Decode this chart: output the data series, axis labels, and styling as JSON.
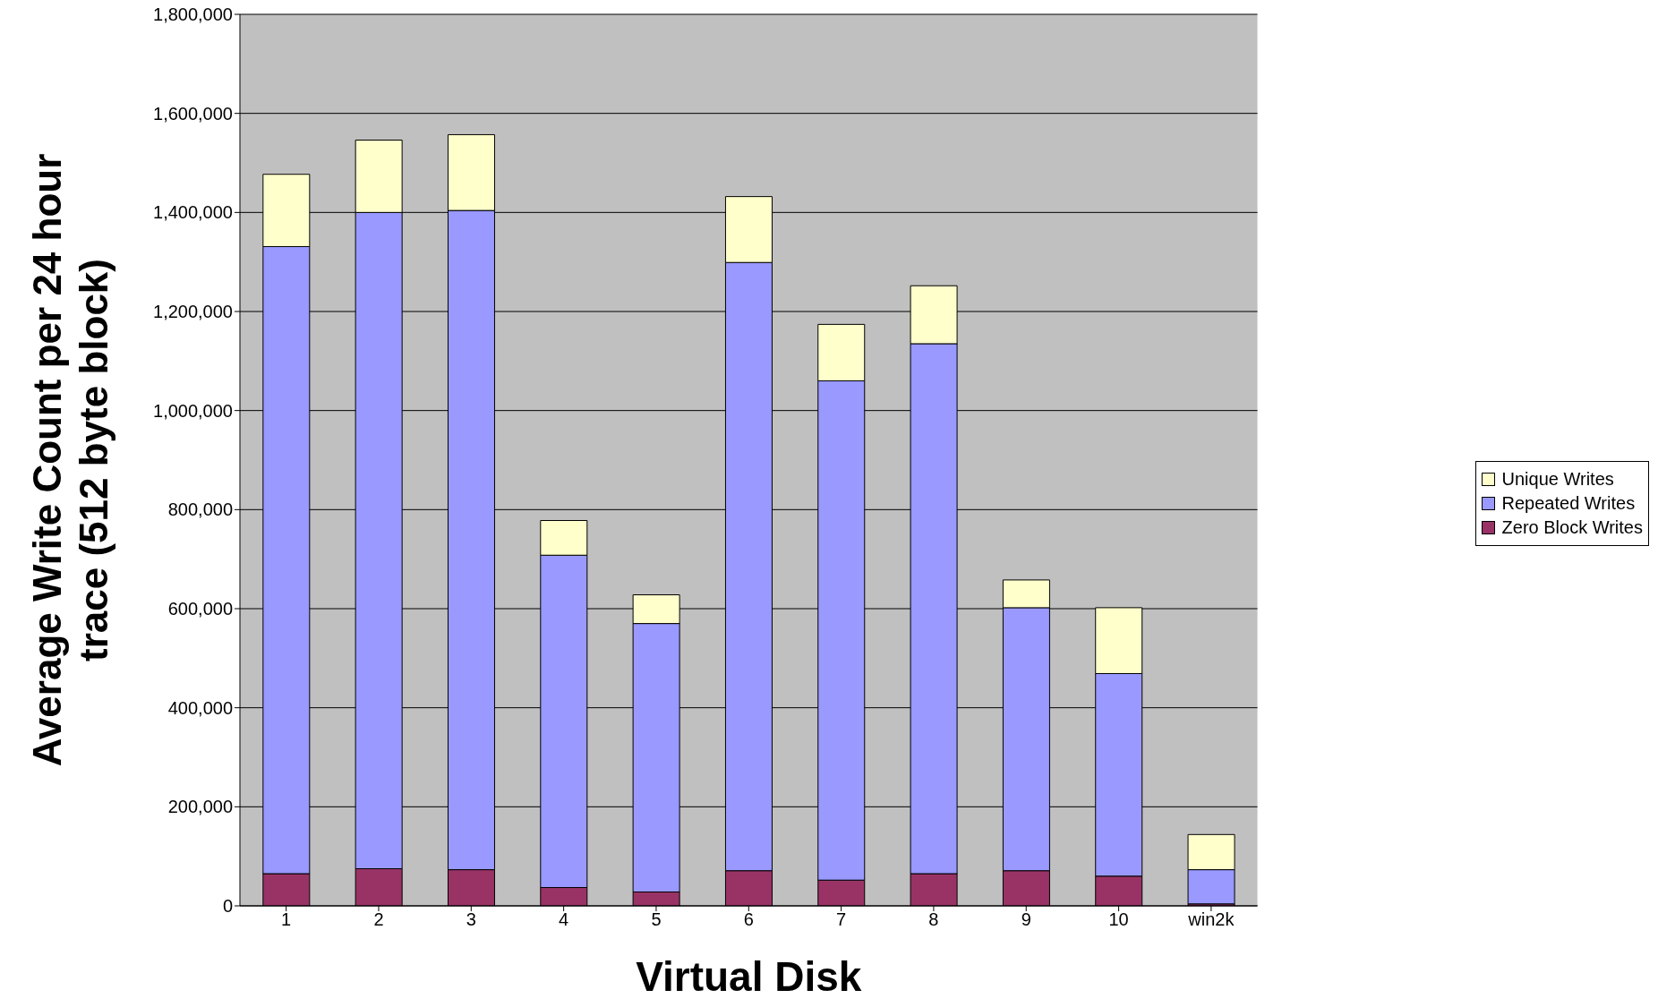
{
  "chart_data": {
    "type": "bar",
    "stacked": true,
    "xlabel": "Virtual Disk",
    "ylabel": "Average Write Count per 24 hour trace (512 byte block)",
    "categories": [
      "1",
      "2",
      "3",
      "4",
      "5",
      "6",
      "7",
      "8",
      "9",
      "10",
      "win2k"
    ],
    "series": [
      {
        "name": "Zero Block Writes",
        "color": "#993366",
        "values": [
          65000,
          75000,
          73000,
          37000,
          28000,
          71000,
          52000,
          65000,
          71000,
          60000,
          4000
        ]
      },
      {
        "name": "Repeated Writes",
        "color": "#9999ff",
        "values": [
          1266000,
          1325000,
          1331000,
          671000,
          542000,
          1228000,
          1008000,
          1070000,
          531000,
          409000,
          69000
        ]
      },
      {
        "name": "Unique Writes",
        "color": "#ffffcc",
        "values": [
          146000,
          146000,
          153000,
          70000,
          58000,
          133000,
          114000,
          117000,
          56000,
          133000,
          71000
        ]
      }
    ],
    "ylim": [
      0,
      1800000
    ],
    "yticks": [
      {
        "value": 0,
        "label": "0"
      },
      {
        "value": 200000,
        "label": "200,000"
      },
      {
        "value": 400000,
        "label": "400,000"
      },
      {
        "value": 600000,
        "label": "600,000"
      },
      {
        "value": 800000,
        "label": "800,000"
      },
      {
        "value": 1000000,
        "label": "1,000,000"
      },
      {
        "value": 1200000,
        "label": "1,200,000"
      },
      {
        "value": 1400000,
        "label": "1,400,000"
      },
      {
        "value": 1600000,
        "label": "1,600,000"
      },
      {
        "value": 1800000,
        "label": "1,800,000"
      }
    ],
    "grid": "y",
    "legend": "right"
  }
}
